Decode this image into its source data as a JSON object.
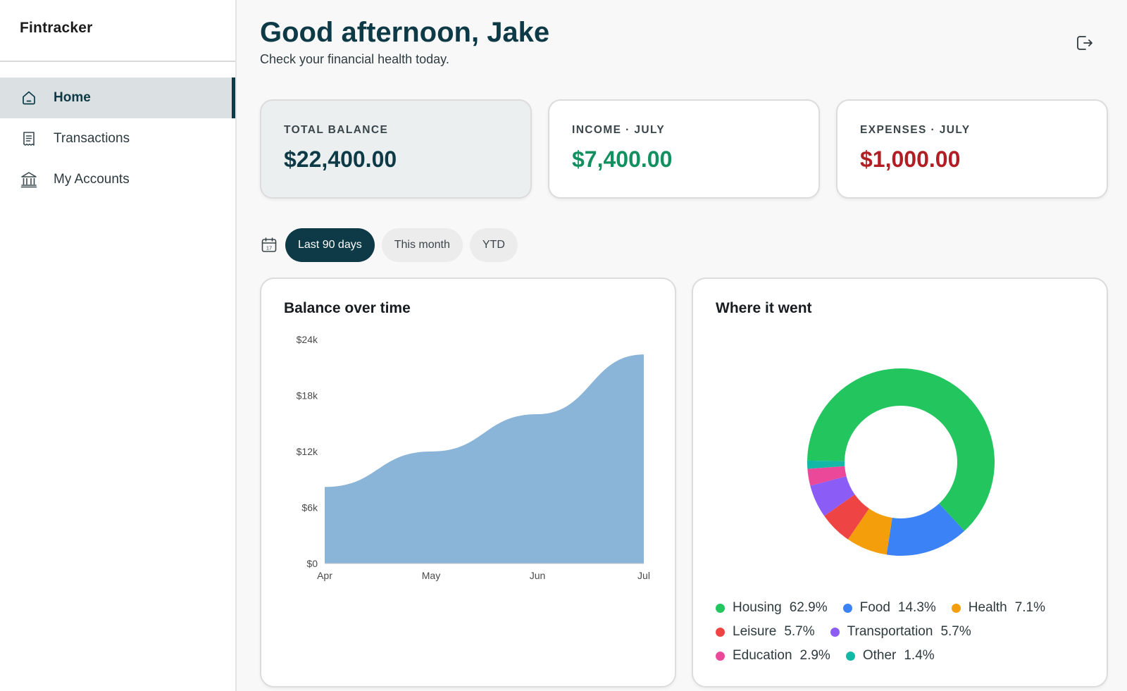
{
  "app": {
    "brand": "Fintracker"
  },
  "sidebar": {
    "items": [
      {
        "label": "Home",
        "icon": "home-icon",
        "active": true
      },
      {
        "label": "Transactions",
        "icon": "receipt-icon",
        "active": false
      },
      {
        "label": "My Accounts",
        "icon": "bank-icon",
        "active": false
      }
    ]
  },
  "header": {
    "greeting": "Good afternoon, Jake",
    "subtitle": "Check your financial health today.",
    "logout_icon": "logout-icon"
  },
  "stats": [
    {
      "label": "TOTAL BALANCE",
      "value": "$22,400.00",
      "color": "#0d3a46"
    },
    {
      "label": "INCOME · JULY",
      "value": "$7,400.00",
      "color": "#13905f"
    },
    {
      "label": "EXPENSES · JULY",
      "value": "$1,000.00",
      "color": "#b11f24"
    }
  ],
  "filters": {
    "icon": "calendar-icon",
    "options": [
      "Last 90 days",
      "This month",
      "YTD"
    ],
    "selected": "Last 90 days"
  },
  "balance_panel": {
    "title": "Balance over time"
  },
  "spend_panel": {
    "title": "Where it went"
  },
  "colors": {
    "accent": "#0d3a46",
    "area_fill": "#8ab4d8",
    "income": "#13905f",
    "expense": "#b11f24"
  },
  "chart_data": [
    {
      "type": "area",
      "title": "Balance over time",
      "x": [
        "Apr",
        "May",
        "Jun",
        "Jul"
      ],
      "y": [
        8200,
        12000,
        16000,
        22400
      ],
      "yticks": [
        "$0",
        "$6k",
        "$12k",
        "$18k",
        "$24k"
      ],
      "ylim": [
        0,
        24000
      ],
      "xlabel": "",
      "ylabel": "",
      "grid": false,
      "color": "#8ab4d8"
    },
    {
      "type": "pie",
      "title": "Where it went",
      "donut": true,
      "legend_position": "bottom",
      "slices": [
        {
          "name": "Housing",
          "value": 62.9,
          "label": "62.9%",
          "color": "#22c55e"
        },
        {
          "name": "Food",
          "value": 14.3,
          "label": "14.3%",
          "color": "#3b82f6"
        },
        {
          "name": "Health",
          "value": 7.1,
          "label": "7.1%",
          "color": "#f59e0b"
        },
        {
          "name": "Leisure",
          "value": 5.7,
          "label": "5.7%",
          "color": "#ef4444"
        },
        {
          "name": "Transportation",
          "value": 5.7,
          "label": "5.7%",
          "color": "#8b5cf6"
        },
        {
          "name": "Education",
          "value": 2.9,
          "label": "2.9%",
          "color": "#ec4899"
        },
        {
          "name": "Other",
          "value": 1.4,
          "label": "1.4%",
          "color": "#14b8a6"
        }
      ]
    }
  ]
}
